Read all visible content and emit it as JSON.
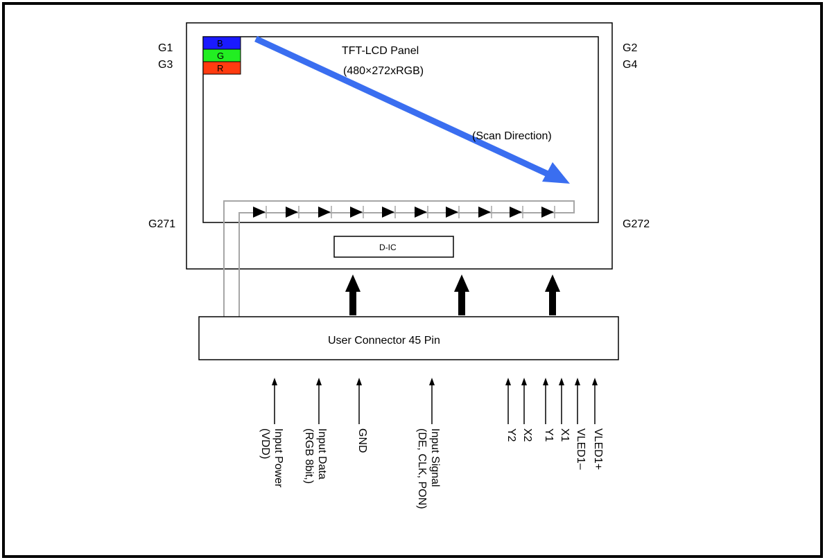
{
  "gate_labels": {
    "top_left_1": "G1",
    "top_left_2": "G3",
    "top_right_1": "G2",
    "top_right_2": "G4",
    "bottom_left": "G271",
    "bottom_right": "G272"
  },
  "panel": {
    "title": "TFT-LCD Panel",
    "resolution": "(480×272xRGB)",
    "scan_direction": "(Scan Direction)"
  },
  "pixel_stack": [
    {
      "label": "B",
      "color": "#1a1aff"
    },
    {
      "label": "G",
      "color": "#22ee22"
    },
    {
      "label": "R",
      "color": "#ff3b10"
    }
  ],
  "driver_ic": "D-IC",
  "connector": "User Connector 45 Pin",
  "signals": [
    "Input Power\n(VDD)",
    "Input Data\n(RGB 8bit,)",
    "GND",
    "Input Signal\n(DE, CLK, PON)",
    "Y2",
    "X2",
    "Y1",
    "X1",
    "VLED1–",
    "VLED1+"
  ],
  "colors": {
    "scan_arrow": "#3a6ef0",
    "wire": "#a6a6a6"
  }
}
